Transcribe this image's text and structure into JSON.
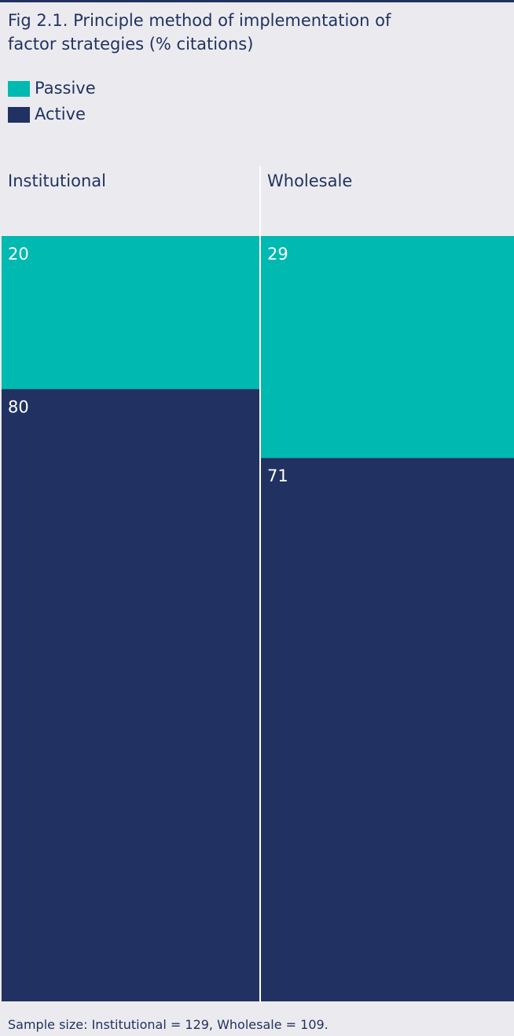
{
  "chart_data": {
    "type": "bar",
    "stacked": true,
    "title": "Fig 2.1. Principle method of implementation of factor strategies (% citations)",
    "categories": [
      "Institutional",
      "Wholesale"
    ],
    "series": [
      {
        "name": "Passive",
        "color": "#00b9b0",
        "values": [
          20,
          29
        ]
      },
      {
        "name": "Active",
        "color": "#213262",
        "values": [
          80,
          71
        ]
      }
    ],
    "ylim": [
      0,
      100
    ],
    "note": "Sample size: Institutional = 129, Wholesale = 109."
  }
}
